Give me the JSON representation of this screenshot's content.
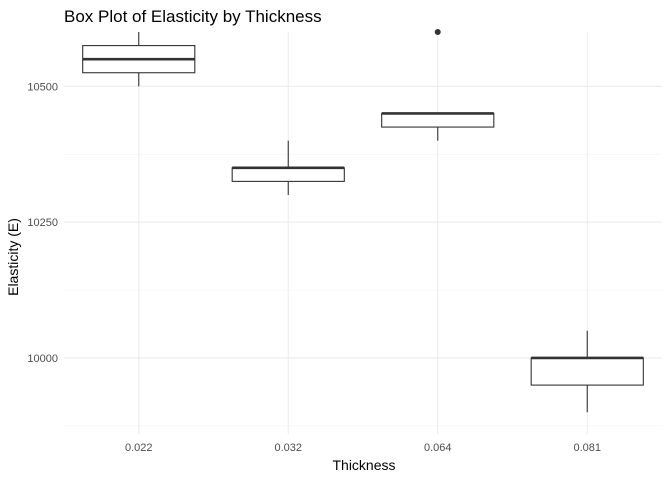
{
  "chart_data": {
    "type": "box",
    "title": "Box Plot of Elasticity by Thickness",
    "xlabel": "Thickness",
    "ylabel": "Elasticity (E)",
    "categories": [
      "0.022",
      "0.032",
      "0.064",
      "0.081"
    ],
    "ylim": [
      9860,
      10600
    ],
    "yticks": [
      10000,
      10250,
      10500
    ],
    "grid": true,
    "boxes": [
      {
        "category": "0.022",
        "min": 10500,
        "q1": 10525,
        "median": 10550,
        "q3": 10575,
        "max": 10600,
        "outliers": []
      },
      {
        "category": "0.032",
        "min": 10300,
        "q1": 10325,
        "median": 10350,
        "q3": 10350,
        "max": 10400,
        "outliers": []
      },
      {
        "category": "0.064",
        "min": 10400,
        "q1": 10425,
        "median": 10450,
        "q3": 10450,
        "max": 10450,
        "outliers": [
          10600
        ]
      },
      {
        "category": "0.081",
        "min": 9900,
        "q1": 9950,
        "median": 10000,
        "q3": 10000,
        "max": 10050,
        "outliers": []
      }
    ]
  }
}
